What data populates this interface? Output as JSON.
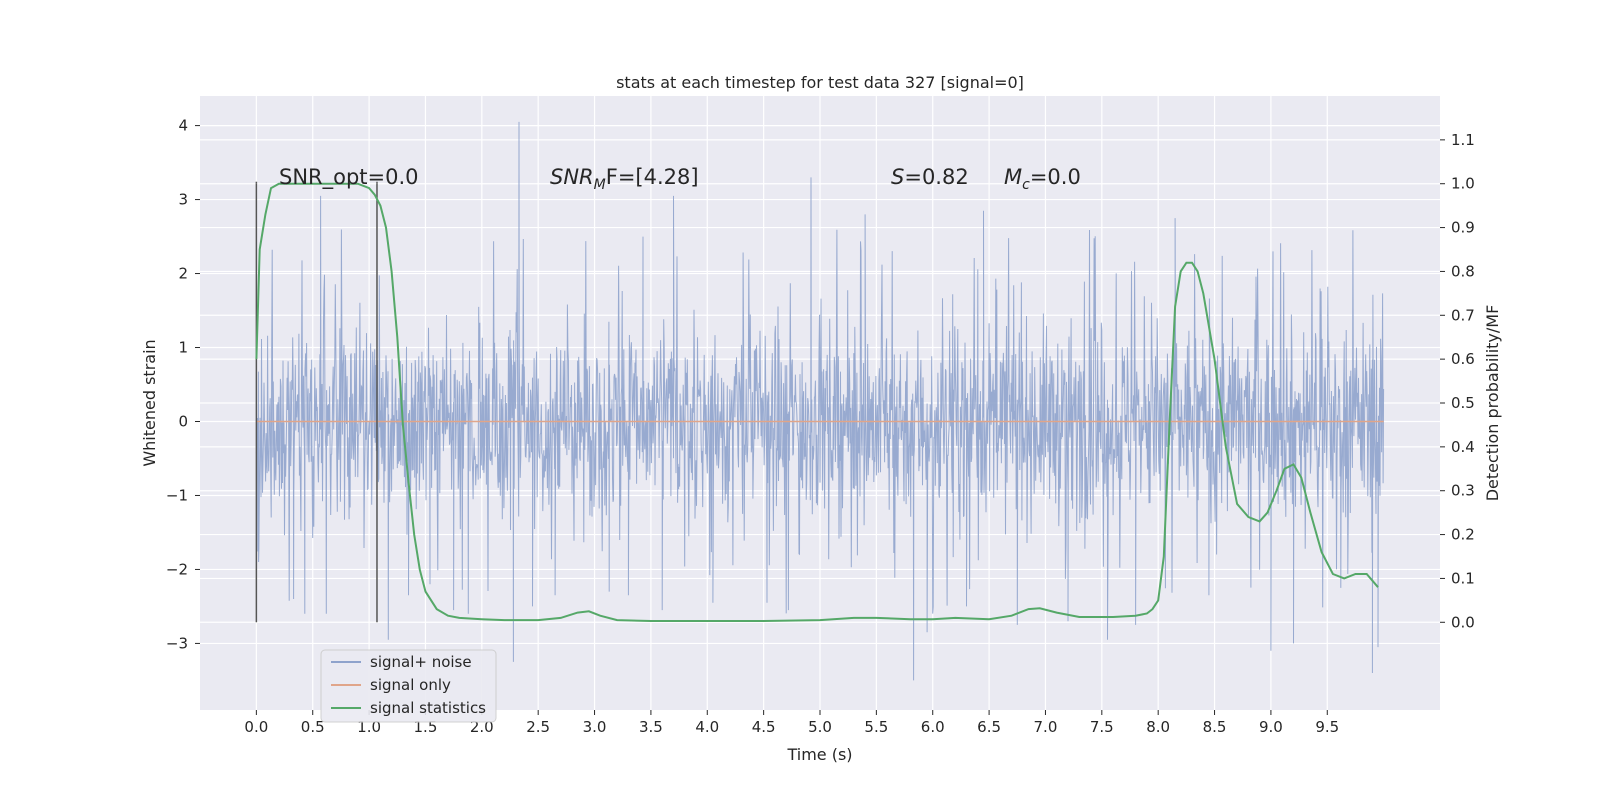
{
  "chart_data": {
    "type": "line",
    "title": "stats at each timestep for test data 327 [signal=0]",
    "xlabel": "Time (s)",
    "ylabel": "Whitened strain",
    "y2label": "Detection probability/MF",
    "xlim": [
      -0.5,
      10.5
    ],
    "ylim": [
      -3.9,
      4.4
    ],
    "y2lim": [
      -0.2,
      1.2
    ],
    "x_ticks": [
      0.0,
      0.5,
      1.0,
      1.5,
      2.0,
      2.5,
      3.0,
      3.5,
      4.0,
      4.5,
      5.0,
      5.5,
      6.0,
      6.5,
      7.0,
      7.5,
      8.0,
      8.5,
      9.0,
      9.5
    ],
    "x_tick_labels": [
      "0.0",
      "0.5",
      "1.0",
      "1.5",
      "2.0",
      "2.5",
      "3.0",
      "3.5",
      "4.0",
      "4.5",
      "5.0",
      "5.5",
      "6.0",
      "6.5",
      "7.0",
      "7.5",
      "8.0",
      "8.5",
      "9.0",
      "9.5"
    ],
    "y_ticks": [
      -3,
      -2,
      -1,
      0,
      1,
      2,
      3,
      4
    ],
    "y_tick_labels": [
      "−3",
      "−2",
      "−1",
      "0",
      "1",
      "2",
      "3",
      "4"
    ],
    "y2_ticks": [
      0.0,
      0.1,
      0.2,
      0.3,
      0.4,
      0.5,
      0.6,
      0.7,
      0.8,
      0.9,
      1.0,
      1.1
    ],
    "y2_tick_labels": [
      "0.0",
      "0.1",
      "0.2",
      "0.3",
      "0.4",
      "0.5",
      "0.6",
      "0.7",
      "0.8",
      "0.9",
      "1.0",
      "1.1"
    ],
    "grid": true,
    "legend_position": "lower-left",
    "annotations": {
      "snr_opt": "SNR_opt=0.0",
      "snr_mf_base": "SNR",
      "snr_mf_sub": "M",
      "snr_mf_rest": "F=[4.28]",
      "s_var": "S",
      "s_val": "=0.82",
      "mc_var": "M",
      "mc_sub": "c",
      "mc_val": "=0.0"
    },
    "window_markers_x": [
      0.0,
      1.07
    ],
    "series": [
      {
        "name": "signal+ noise",
        "color": "#8fa3cc",
        "axis": "left",
        "x_range": [
          0.0,
          10.0
        ],
        "typical_amplitude": 1.4,
        "spikes": [
          {
            "x": 0.02,
            "y": -1.9
          },
          {
            "x": 0.33,
            "y": -2.4
          },
          {
            "x": 0.43,
            "y": -2.6
          },
          {
            "x": 0.57,
            "y": 3.05
          },
          {
            "x": 0.62,
            "y": -2.6
          },
          {
            "x": 1.17,
            "y": -2.95
          },
          {
            "x": 1.35,
            "y": -2.35
          },
          {
            "x": 1.54,
            "y": -2.2
          },
          {
            "x": 1.75,
            "y": -2.55
          },
          {
            "x": 1.88,
            "y": -2.6
          },
          {
            "x": 2.33,
            "y": 4.05
          },
          {
            "x": 2.28,
            "y": -3.25
          },
          {
            "x": 2.45,
            "y": -2.5
          },
          {
            "x": 2.65,
            "y": -2.35
          },
          {
            "x": 3.13,
            "y": -2.3
          },
          {
            "x": 3.3,
            "y": -2.35
          },
          {
            "x": 3.43,
            "y": 2.5
          },
          {
            "x": 3.6,
            "y": -2.55
          },
          {
            "x": 3.7,
            "y": 3.05
          },
          {
            "x": 4.05,
            "y": -2.45
          },
          {
            "x": 4.53,
            "y": -2.45
          },
          {
            "x": 4.72,
            "y": -2.55
          },
          {
            "x": 4.92,
            "y": 3.3
          },
          {
            "x": 5.4,
            "y": 2.8
          },
          {
            "x": 5.83,
            "y": -3.5
          },
          {
            "x": 5.95,
            "y": -2.85
          },
          {
            "x": 6.3,
            "y": -2.5
          },
          {
            "x": 6.45,
            "y": 2.85
          },
          {
            "x": 6.75,
            "y": -2.75
          },
          {
            "x": 7.2,
            "y": -2.7
          },
          {
            "x": 7.55,
            "y": -2.95
          },
          {
            "x": 7.8,
            "y": -2.75
          },
          {
            "x": 8.15,
            "y": 2.75
          },
          {
            "x": 8.45,
            "y": -2.35
          },
          {
            "x": 9.0,
            "y": -3.1
          },
          {
            "x": 9.2,
            "y": -3.0
          },
          {
            "x": 9.62,
            "y": -2.25
          },
          {
            "x": 9.9,
            "y": -3.4
          },
          {
            "x": 9.95,
            "y": -3.05
          }
        ]
      },
      {
        "name": "signal only",
        "color": "#e0a58a",
        "axis": "left",
        "x": [
          0.0,
          10.0
        ],
        "y": [
          0.0,
          0.0
        ]
      },
      {
        "name": "signal statistics",
        "color": "#55a868",
        "axis": "right",
        "x": [
          0.0,
          0.03,
          0.08,
          0.13,
          0.2,
          0.3,
          0.5,
          0.7,
          0.9,
          1.0,
          1.05,
          1.1,
          1.15,
          1.2,
          1.25,
          1.3,
          1.35,
          1.4,
          1.45,
          1.5,
          1.6,
          1.7,
          1.8,
          2.0,
          2.2,
          2.5,
          2.7,
          2.85,
          2.95,
          3.05,
          3.2,
          3.5,
          4.0,
          4.5,
          5.0,
          5.3,
          5.5,
          5.8,
          6.0,
          6.2,
          6.5,
          6.7,
          6.85,
          6.95,
          7.1,
          7.3,
          7.6,
          7.8,
          7.9,
          7.95,
          8.0,
          8.05,
          8.1,
          8.15,
          8.2,
          8.25,
          8.3,
          8.35,
          8.4,
          8.5,
          8.6,
          8.7,
          8.8,
          8.9,
          8.97,
          9.05,
          9.12,
          9.2,
          9.27,
          9.35,
          9.45,
          9.55,
          9.65,
          9.75,
          9.85,
          9.95
        ],
        "y": [
          0.6,
          0.85,
          0.93,
          0.99,
          1.0,
          1.0,
          1.0,
          1.0,
          1.0,
          0.99,
          0.975,
          0.95,
          0.9,
          0.8,
          0.65,
          0.45,
          0.32,
          0.2,
          0.12,
          0.07,
          0.03,
          0.015,
          0.01,
          0.007,
          0.005,
          0.005,
          0.01,
          0.022,
          0.025,
          0.015,
          0.005,
          0.003,
          0.003,
          0.003,
          0.005,
          0.01,
          0.01,
          0.007,
          0.007,
          0.01,
          0.007,
          0.015,
          0.03,
          0.032,
          0.022,
          0.012,
          0.012,
          0.015,
          0.02,
          0.03,
          0.05,
          0.15,
          0.45,
          0.72,
          0.8,
          0.82,
          0.82,
          0.8,
          0.75,
          0.6,
          0.4,
          0.27,
          0.24,
          0.23,
          0.25,
          0.3,
          0.35,
          0.36,
          0.33,
          0.25,
          0.16,
          0.11,
          0.1,
          0.11,
          0.11,
          0.08
        ]
      }
    ]
  }
}
